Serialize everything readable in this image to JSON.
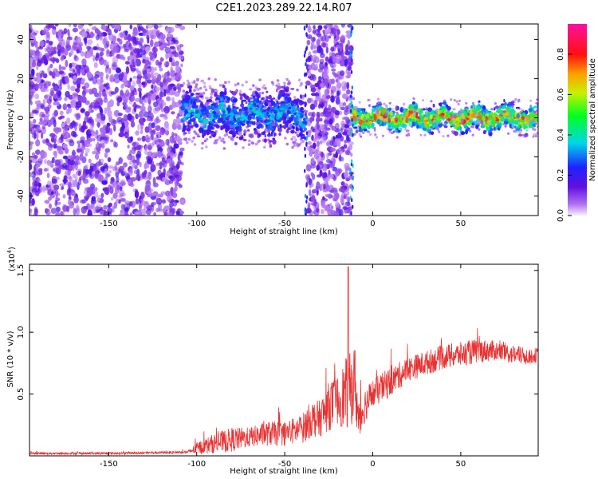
{
  "title": "C2E1.2023.289.22.14.R07",
  "chart_data": [
    {
      "type": "heatmap",
      "name": "spectrogram",
      "xlabel": "Height of straight line (km)",
      "ylabel": "Frequency (Hz)",
      "xlim": [
        -195,
        94
      ],
      "ylim": [
        -50,
        48
      ],
      "xticks": [
        -150,
        -100,
        -50,
        0,
        50
      ],
      "xtick_labels": [
        "-150",
        "-100",
        "-50",
        "0",
        "50"
      ],
      "yticks": [
        40,
        20,
        0,
        -20,
        -40
      ],
      "ytick_labels": [
        "40",
        "20",
        "0",
        "-20",
        "-40"
      ],
      "colorbar": {
        "label": "Normalized spectral amplitude",
        "range": [
          0,
          0.95
        ],
        "ticks": [
          0.0,
          0.2,
          0.4,
          0.6,
          0.8
        ],
        "tick_labels": [
          "0.0",
          "0.2",
          "0.4",
          "0.6",
          "0.8"
        ]
      },
      "regions": [
        {
          "x": [
            -195,
            -108
          ],
          "description": "broadband noise, low amplitude (violet)"
        },
        {
          "x": [
            -108,
            -38
          ],
          "freq_center": 2,
          "freq_halfwidth": 10,
          "peak_amplitude": 0.4
        },
        {
          "x": [
            -37,
            -12
          ],
          "description": "broadband noise, low amplitude (violet)"
        },
        {
          "x": [
            -12,
            94
          ],
          "freq_center": 0,
          "freq_halfwidth": 5,
          "peak_amplitude": 0.9
        }
      ]
    },
    {
      "type": "line",
      "name": "snr",
      "xlabel": "Height of straight line (km)",
      "ylabel": "SNR (10 * v/v)",
      "y_multiplier": "(x10",
      "y_multiplier_exp": "4",
      "y_multiplier_close": ")",
      "xlim": [
        -195,
        94
      ],
      "ylim": [
        0,
        1.55
      ],
      "xticks": [
        -150,
        -100,
        -50,
        0,
        50
      ],
      "xtick_labels": [
        "-150",
        "-100",
        "-50",
        "0",
        "50"
      ],
      "yticks": [
        0.5,
        1.0,
        1.5
      ],
      "ytick_labels": [
        "0.5",
        "1.0",
        "1.5"
      ],
      "series": [
        {
          "name": "SNR",
          "color": "#e83232",
          "x": [
            -195,
            -150,
            -105,
            -100,
            -90,
            -80,
            -70,
            -60,
            -50,
            -40,
            -35,
            -30,
            -25,
            -20,
            -15,
            -12,
            -10,
            -8,
            -5,
            0,
            5,
            10,
            20,
            30,
            40,
            50,
            60,
            70,
            80,
            90,
            94
          ],
          "y": [
            0.02,
            0.02,
            0.03,
            0.06,
            0.1,
            0.13,
            0.15,
            0.18,
            0.18,
            0.22,
            0.3,
            0.3,
            0.4,
            0.45,
            0.5,
            0.55,
            0.6,
            0.25,
            0.4,
            0.5,
            0.55,
            0.6,
            0.7,
            0.75,
            0.8,
            0.82,
            0.85,
            0.85,
            0.82,
            0.8,
            0.82
          ],
          "noise": [
            0.01,
            0.01,
            0.01,
            0.05,
            0.08,
            0.1,
            0.08,
            0.1,
            0.1,
            0.12,
            0.15,
            0.15,
            0.2,
            0.2,
            0.3,
            0.3,
            0.3,
            0.2,
            0.15,
            0.12,
            0.12,
            0.12,
            0.1,
            0.1,
            0.1,
            0.1,
            0.1,
            0.08,
            0.08,
            0.06,
            0.06
          ]
        }
      ],
      "peak": {
        "x": -14,
        "y": 1.53
      }
    }
  ]
}
